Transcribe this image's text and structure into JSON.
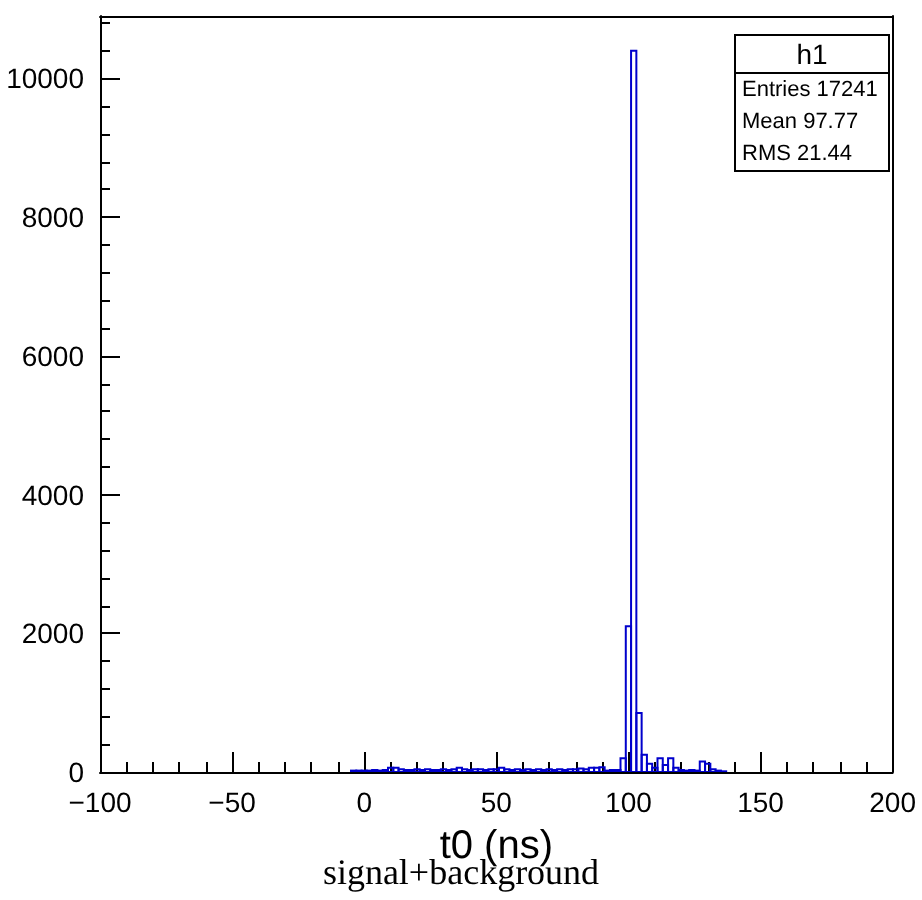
{
  "chart_data": {
    "type": "histogram",
    "xlabel": "t0 (ns)",
    "bins": [
      -5,
      -3,
      -1,
      1,
      3,
      5,
      7,
      9,
      11,
      13,
      15,
      17,
      19,
      21,
      23,
      25,
      27,
      29,
      31,
      33,
      35,
      37,
      39,
      41,
      43,
      45,
      47,
      49,
      51,
      53,
      55,
      57,
      59,
      61,
      63,
      65,
      67,
      69,
      71,
      73,
      75,
      77,
      79,
      81,
      83,
      85,
      87,
      89,
      91,
      93,
      95,
      97,
      99,
      101,
      103,
      105,
      107,
      109,
      111,
      113,
      115,
      117,
      119,
      121,
      123,
      125,
      127,
      129,
      131,
      133,
      135,
      137
    ],
    "values": [
      20,
      20,
      20,
      20,
      30,
      20,
      30,
      60,
      60,
      40,
      30,
      30,
      40,
      30,
      40,
      30,
      30,
      40,
      30,
      40,
      60,
      40,
      30,
      40,
      40,
      30,
      40,
      40,
      60,
      40,
      30,
      40,
      30,
      40,
      30,
      40,
      30,
      40,
      30,
      40,
      30,
      40,
      40,
      50,
      40,
      60,
      60,
      70,
      20,
      30,
      30,
      200,
      2100,
      10400,
      850,
      250,
      120,
      60,
      200,
      100,
      200,
      60,
      30,
      20,
      30,
      20,
      150,
      120,
      40,
      20,
      10
    ],
    "color": "#0000cc",
    "xlim": [
      -100,
      200
    ],
    "xticks": [
      -100,
      -50,
      0,
      50,
      100,
      150,
      200
    ],
    "ylim": [
      0,
      10900
    ],
    "yticks": [
      0,
      2000,
      4000,
      6000,
      8000,
      10000
    ],
    "grid": false,
    "annotations": [
      "h1",
      "Entries 17241",
      "Mean 97.77",
      "RMS 21.44",
      "signal+background"
    ]
  }
}
